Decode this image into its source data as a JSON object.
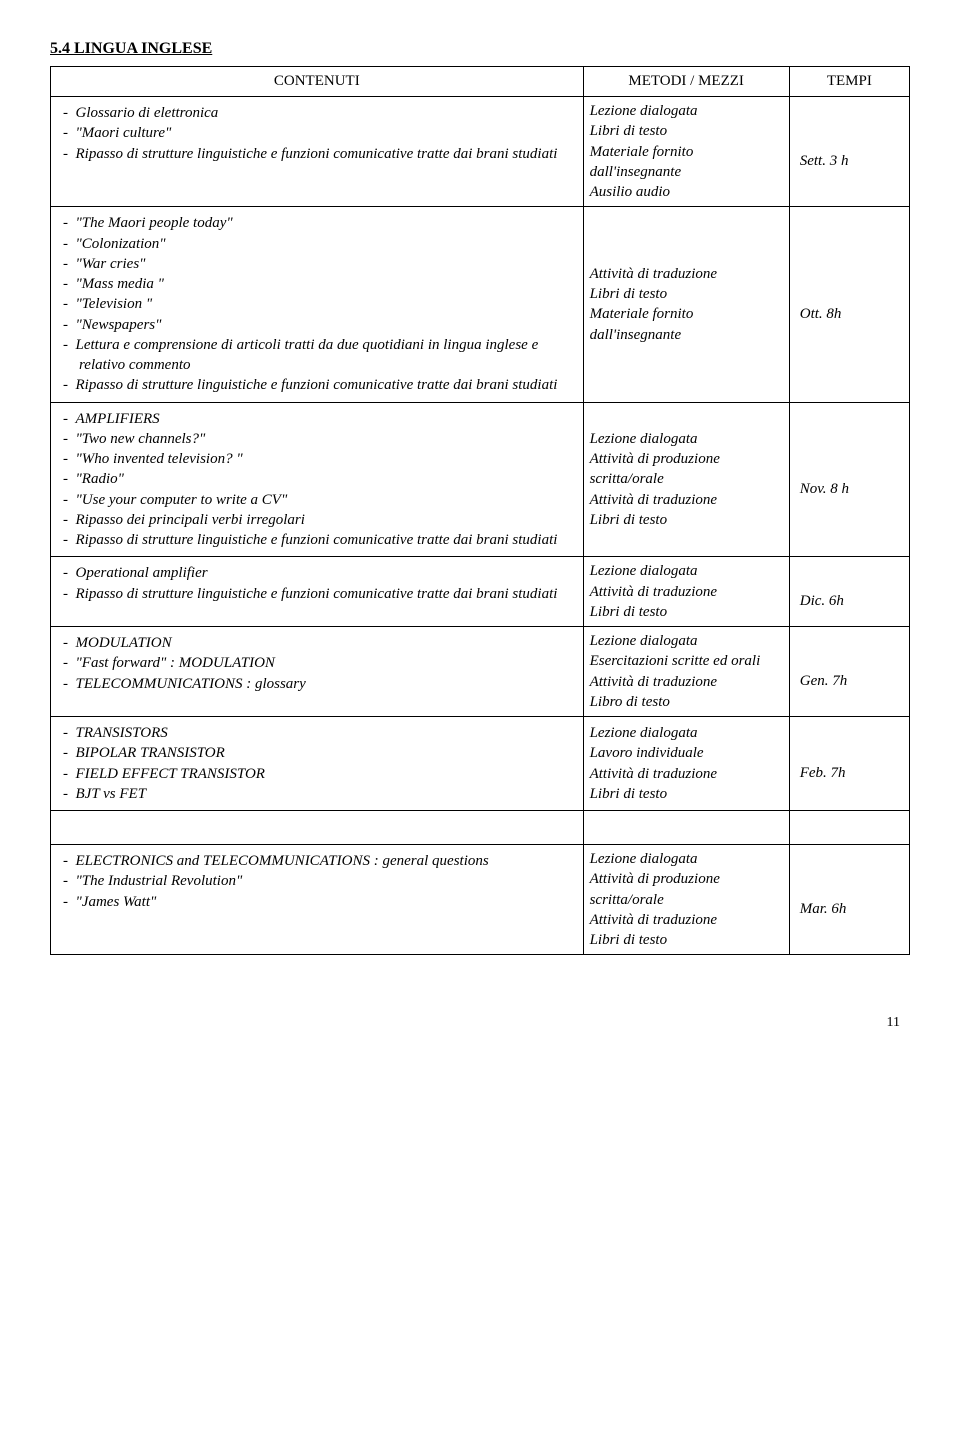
{
  "heading": "5.4 LINGUA  INGLESE",
  "header": {
    "contenuti": "CONTENUTI",
    "metodi": "METODI / MEZZI",
    "tempi": "TEMPI"
  },
  "rows": [
    {
      "content": [
        "Glossario di elettronica",
        "\"Maori culture\"",
        "Ripasso di strutture linguistiche e funzioni comunicative tratte dai brani studiati"
      ],
      "methods": [
        "Lezione dialogata",
        "Libri di testo",
        "Materiale fornito dall'insegnante",
        "Ausilio audio"
      ],
      "time": "Sett. 3 h"
    },
    {
      "content": [
        "\"The Maori people today\"",
        "\"Colonization\"",
        "\"War cries\"",
        "\"Mass media \"",
        "\"Television \"",
        "\"Newspapers\"",
        "Lettura e comprensione di articoli tratti da due quotidiani in lingua  inglese e relativo commento",
        "Ripasso di strutture linguistiche e funzioni comunicative tratte dai brani studiati"
      ],
      "methods": [
        "Attività di traduzione",
        "Libri di testo",
        "Materiale fornito dall'insegnante"
      ],
      "time": "Ott. 8h"
    },
    {
      "content": [
        "AMPLIFIERS",
        "\"Two new channels?\"",
        "\"Who invented television? \"",
        "\"Radio\"",
        "\"Use your computer to write a CV\"",
        "Ripasso dei principali verbi irregolari",
        "Ripasso di strutture linguistiche e funzioni comunicative tratte dai brani studiati"
      ],
      "methods": [
        "Lezione dialogata",
        "Attività di produzione scritta/orale",
        "Attività di traduzione",
        "Libri di testo"
      ],
      "time": "Nov. 8 h"
    },
    {
      "content": [
        "Operational amplifier",
        "Ripasso di strutture linguistiche e funzioni comunicative tratte dai brani studiati"
      ],
      "methods": [
        "Lezione dialogata",
        "Attività di traduzione",
        "Libri di testo"
      ],
      "time": "Dic. 6h"
    },
    {
      "content": [
        "MODULATION",
        "\"Fast forward\" : MODULATION",
        "TELECOMMUNICATIONS : glossary"
      ],
      "methods": [
        "Lezione dialogata",
        "Esercitazioni scritte ed orali",
        "Attività di traduzione",
        "Libro di testo"
      ],
      "time": "Gen. 7h"
    },
    {
      "content": [
        "TRANSISTORS",
        "BIPOLAR TRANSISTOR",
        "FIELD EFFECT TRANSISTOR",
        "BJT  vs FET"
      ],
      "methods": [
        "Lezione dialogata",
        "Lavoro individuale",
        "Attività di traduzione",
        "Libri di testo"
      ],
      "time": "Feb. 7h"
    },
    {
      "content": [
        "ELECTRONICS and TELECOMMUNICATIONS : general questions",
        "\"The Industrial Revolution\"",
        "\"James Watt\""
      ],
      "methods": [
        "Lezione dialogata",
        "Attività di produzione scritta/orale",
        "Attività di traduzione",
        "Libri di testo"
      ],
      "time": "Mar. 6h"
    }
  ],
  "pageNumber": "11"
}
